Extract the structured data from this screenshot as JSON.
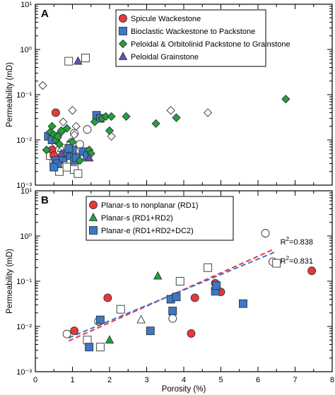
{
  "colors": {
    "red": "#e8393a",
    "blue": "#3b78c8",
    "green": "#1ea33a",
    "purple": "#6a4fb3",
    "open": "#ffffff",
    "fit_red": "#e8393a",
    "fit_blue": "#3b78c8"
  },
  "chart_data": [
    {
      "type": "scatter",
      "panel_label": "A",
      "ylabel": "Permeability (mD)",
      "xlim": [
        0,
        8
      ],
      "ylim": [
        0.001,
        10
      ],
      "yscale": "log",
      "y_tick_labels": [
        "10⁻³",
        "10⁻²",
        "10⁻¹",
        "10⁰",
        "10¹"
      ],
      "legend_position": "top-right",
      "series": [
        {
          "name": "Spicule Wackestone",
          "marker": "circle",
          "color": "red",
          "x": [
            0.55,
            0.45,
            0.65,
            0.5
          ],
          "y": [
            0.04,
            0.006,
            0.0035,
            0.0045
          ]
        },
        {
          "name": "Bioclastic Wackestone to Packstone",
          "marker": "square",
          "color": "blue",
          "x": [
            0.35,
            0.45,
            0.55,
            0.6,
            0.75,
            0.85,
            0.95,
            1.0,
            1.05,
            1.1,
            1.3,
            1.4,
            1.65,
            1.75,
            0.5,
            0.9
          ],
          "y": [
            0.012,
            0.01,
            0.0035,
            0.003,
            0.004,
            0.005,
            0.0045,
            0.006,
            0.0035,
            0.004,
            0.0055,
            0.0045,
            0.035,
            0.03,
            0.0025,
            0.0065
          ]
        },
        {
          "name": "Peloidal & Orbitolinid Packstone to Grainstone",
          "marker": "diamond",
          "color": "green",
          "x": [
            0.3,
            0.4,
            0.45,
            0.5,
            0.55,
            0.6,
            0.65,
            0.7,
            0.85,
            1.0,
            1.2,
            1.45,
            1.5,
            1.6,
            1.8,
            1.9,
            2.0,
            2.05,
            2.45,
            3.25,
            3.8,
            6.75
          ],
          "y": [
            0.006,
            0.015,
            0.02,
            0.013,
            0.01,
            0.012,
            0.008,
            0.016,
            0.018,
            0.009,
            0.0035,
            0.006,
            0.005,
            0.025,
            0.03,
            0.033,
            0.016,
            0.033,
            0.033,
            0.023,
            0.031,
            0.08
          ]
        },
        {
          "name": "Peloidal Grainstone",
          "marker": "triangle",
          "color": "purple",
          "x": [
            1.15,
            0.7,
            1.45
          ],
          "y": [
            0.55,
            0.005,
            0.004
          ]
        },
        {
          "name": "",
          "marker": "circle-open",
          "color": "open",
          "x": [
            0.6,
            0.95,
            1.05,
            1.2,
            0.8,
            1.4
          ],
          "y": [
            0.012,
            0.006,
            0.014,
            0.008,
            0.0025,
            0.017
          ]
        },
        {
          "name": "",
          "marker": "square-open",
          "color": "open",
          "x": [
            0.9,
            1.35,
            0.5,
            0.65,
            0.75,
            0.85,
            1.05,
            1.15,
            0.4
          ],
          "y": [
            0.55,
            0.65,
            0.003,
            0.002,
            0.003,
            0.0025,
            0.0022,
            0.0018,
            0.0045
          ]
        },
        {
          "name": "",
          "marker": "diamond-open",
          "color": "open",
          "x": [
            0.2,
            0.75,
            1.0,
            1.05,
            1.1,
            2.05,
            3.65,
            4.65,
            0.95,
            0.55,
            0.7
          ],
          "y": [
            0.16,
            0.025,
            0.045,
            0.013,
            0.02,
            0.012,
            0.045,
            0.04,
            0.009,
            0.008,
            0.015
          ]
        },
        {
          "name": "",
          "marker": "triangle-open",
          "color": "open",
          "x": [
            0.7,
            0.9,
            1.0,
            1.25,
            0.55,
            1.1,
            0.8
          ],
          "y": [
            0.0065,
            0.008,
            0.005,
            0.004,
            0.003,
            0.006,
            0.0045
          ]
        }
      ]
    },
    {
      "type": "scatter",
      "panel_label": "B",
      "xlabel": "Porosity (%)",
      "ylabel": "Permeability (mD)",
      "xlim": [
        0,
        8
      ],
      "ylim": [
        0.001,
        10
      ],
      "yscale": "log",
      "x_ticks": [
        0,
        1,
        2,
        3,
        4,
        5,
        6,
        7,
        8
      ],
      "y_tick_labels": [
        "10⁻³",
        "10⁻²",
        "10⁻¹",
        "10⁰",
        "10¹"
      ],
      "legend_position": "top-left",
      "series": [
        {
          "name": "Planar-s to nonplanar (RD1)",
          "marker": "circle",
          "color": "red",
          "x": [
            1.05,
            1.95,
            4.2,
            4.3,
            4.85,
            5.0,
            7.45
          ],
          "y": [
            0.008,
            0.043,
            0.007,
            0.043,
            0.09,
            0.058,
            0.17
          ]
        },
        {
          "name": "Planar-s (RD1+RD2)",
          "marker": "triangle",
          "color": "green",
          "x": [
            2.0,
            3.3
          ],
          "y": [
            0.005,
            0.13
          ]
        },
        {
          "name": "Planar-e (RD1+RD2+DC2)",
          "marker": "square",
          "color": "blue",
          "x": [
            1.45,
            1.75,
            3.1,
            3.65,
            3.7,
            3.8,
            4.85,
            4.88,
            5.6
          ],
          "y": [
            0.0035,
            0.014,
            0.008,
            0.04,
            0.022,
            0.045,
            0.06,
            0.08,
            0.032
          ]
        },
        {
          "name": "",
          "marker": "circle-open",
          "color": "open",
          "x": [
            0.85,
            1.7,
            3.7,
            6.2,
            6.4
          ],
          "y": [
            0.0068,
            0.013,
            0.015,
            1.15,
            0.27
          ]
        },
        {
          "name": "",
          "marker": "square-open",
          "color": "open",
          "x": [
            1.4,
            1.75,
            2.3,
            3.9,
            4.65,
            6.5
          ],
          "y": [
            0.005,
            0.0035,
            0.024,
            0.1,
            0.2,
            0.25
          ]
        },
        {
          "name": "",
          "marker": "triangle-open",
          "color": "open",
          "x": [
            2.85
          ],
          "y": [
            0.014
          ]
        }
      ],
      "fits": [
        {
          "color": "fit_red",
          "x": [
            0.9,
            6.45
          ],
          "y": [
            0.0048,
            0.52
          ],
          "r2": "0.838"
        },
        {
          "color": "fit_blue",
          "x": [
            0.9,
            6.45
          ],
          "y": [
            0.0056,
            0.44
          ],
          "r2": "0.831"
        }
      ]
    }
  ]
}
